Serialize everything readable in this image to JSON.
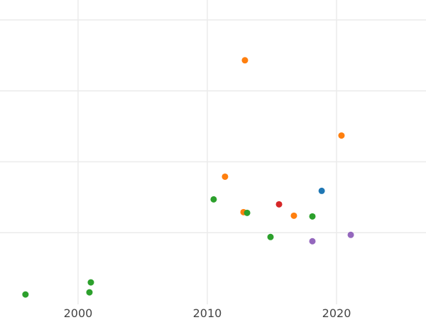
{
  "chart_data": {
    "type": "scatter",
    "title": "",
    "xlabel": "",
    "ylabel": "",
    "xlim": [
      1993.96,
      2026.92
    ],
    "ylim": [
      -0.23,
      4.28
    ],
    "grid": true,
    "x_ticks": [
      2000,
      2010,
      2020
    ],
    "x_tick_labels": [
      "2000",
      "2010",
      "2020"
    ],
    "y_gridlines": [
      1,
      2,
      3,
      4
    ],
    "colors": {
      "blue": "#1f77b4",
      "orange": "#ff7f0e",
      "green": "#2ca02c",
      "red": "#d62728",
      "purple": "#9467bd"
    },
    "points": [
      {
        "x": 1995.93,
        "y": 0.13,
        "color": "green"
      },
      {
        "x": 2000.99,
        "y": 0.3,
        "color": "green"
      },
      {
        "x": 2000.88,
        "y": 0.16,
        "color": "green"
      },
      {
        "x": 2012.91,
        "y": 3.43,
        "color": "orange"
      },
      {
        "x": 2020.38,
        "y": 2.37,
        "color": "orange"
      },
      {
        "x": 2011.37,
        "y": 1.79,
        "color": "orange"
      },
      {
        "x": 2010.49,
        "y": 1.47,
        "color": "green"
      },
      {
        "x": 2012.8,
        "y": 1.29,
        "color": "orange"
      },
      {
        "x": 2013.08,
        "y": 1.28,
        "color": "green"
      },
      {
        "x": 2015.55,
        "y": 1.4,
        "color": "red"
      },
      {
        "x": 2016.7,
        "y": 1.24,
        "color": "orange"
      },
      {
        "x": 2018.13,
        "y": 1.23,
        "color": "green"
      },
      {
        "x": 2018.85,
        "y": 1.59,
        "color": "blue"
      },
      {
        "x": 2014.89,
        "y": 0.94,
        "color": "green"
      },
      {
        "x": 2018.13,
        "y": 0.88,
        "color": "purple"
      },
      {
        "x": 2021.1,
        "y": 0.97,
        "color": "purple"
      }
    ]
  }
}
